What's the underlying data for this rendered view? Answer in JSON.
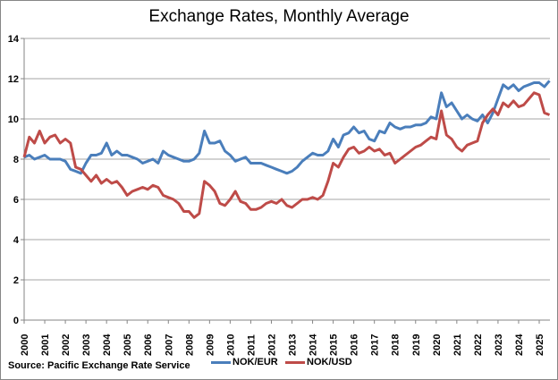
{
  "chart_data": {
    "type": "line",
    "title": "Exchange Rates, Monthly Average",
    "source": "Source: Pacific Exchange Rate Service",
    "xlabel": "",
    "ylabel": "",
    "ylim": [
      0,
      14
    ],
    "yticks": [
      0,
      2,
      4,
      6,
      8,
      10,
      12,
      14
    ],
    "xlim": [
      2000,
      2025.5
    ],
    "xticks": [
      "2000",
      "2001",
      "2002",
      "2003",
      "2004",
      "2005",
      "2006",
      "2007",
      "2008",
      "2009",
      "2010",
      "2011",
      "2012",
      "2013",
      "2014",
      "2015",
      "2016",
      "2017",
      "2018",
      "2019",
      "2020",
      "2021",
      "2022",
      "2023",
      "2024",
      "2025"
    ],
    "grid": true,
    "legend": "bottom",
    "x": [
      2000,
      2000.25,
      2000.5,
      2000.75,
      2001,
      2001.25,
      2001.5,
      2001.75,
      2002,
      2002.25,
      2002.5,
      2002.75,
      2003,
      2003.25,
      2003.5,
      2003.75,
      2004,
      2004.25,
      2004.5,
      2004.75,
      2005,
      2005.25,
      2005.5,
      2005.75,
      2006,
      2006.25,
      2006.5,
      2006.75,
      2007,
      2007.25,
      2007.5,
      2007.75,
      2008,
      2008.25,
      2008.5,
      2008.75,
      2009,
      2009.25,
      2009.5,
      2009.75,
      2010,
      2010.25,
      2010.5,
      2010.75,
      2011,
      2011.25,
      2011.5,
      2011.75,
      2012,
      2012.25,
      2012.5,
      2012.75,
      2013,
      2013.25,
      2013.5,
      2013.75,
      2014,
      2014.25,
      2014.5,
      2014.75,
      2015,
      2015.25,
      2015.5,
      2015.75,
      2016,
      2016.25,
      2016.5,
      2016.75,
      2017,
      2017.25,
      2017.5,
      2017.75,
      2018,
      2018.25,
      2018.5,
      2018.75,
      2019,
      2019.25,
      2019.5,
      2019.75,
      2020,
      2020.25,
      2020.5,
      2020.75,
      2021,
      2021.25,
      2021.5,
      2021.75,
      2022,
      2022.25,
      2022.5,
      2022.75,
      2023,
      2023.25,
      2023.5,
      2023.75,
      2024,
      2024.25,
      2024.5,
      2024.75,
      2025,
      2025.25,
      2025.5
    ],
    "series": [
      {
        "name": "NOK/EUR",
        "color": "#4a7ebb",
        "values": [
          8.1,
          8.2,
          8.0,
          8.1,
          8.2,
          8.0,
          8.0,
          8.0,
          7.9,
          7.5,
          7.4,
          7.3,
          7.8,
          8.2,
          8.2,
          8.3,
          8.8,
          8.2,
          8.4,
          8.2,
          8.2,
          8.1,
          8.0,
          7.8,
          7.9,
          8.0,
          7.8,
          8.4,
          8.2,
          8.1,
          8.0,
          7.9,
          7.9,
          8.0,
          8.3,
          9.4,
          8.8,
          8.8,
          8.9,
          8.4,
          8.2,
          7.9,
          8.0,
          8.1,
          7.8,
          7.8,
          7.8,
          7.7,
          7.6,
          7.5,
          7.4,
          7.3,
          7.4,
          7.6,
          7.9,
          8.1,
          8.3,
          8.2,
          8.2,
          8.4,
          9.0,
          8.6,
          9.2,
          9.3,
          9.6,
          9.3,
          9.4,
          9.0,
          8.9,
          9.4,
          9.3,
          9.8,
          9.6,
          9.5,
          9.6,
          9.6,
          9.7,
          9.7,
          9.8,
          10.1,
          10.0,
          11.3,
          10.6,
          10.8,
          10.4,
          10.0,
          10.2,
          10.0,
          9.9,
          10.2,
          9.8,
          10.3,
          11.0,
          11.7,
          11.5,
          11.7,
          11.4,
          11.6,
          11.7,
          11.8,
          11.8,
          11.6,
          11.9
        ]
      },
      {
        "name": "NOK/USD",
        "color": "#be4b48",
        "values": [
          8.1,
          9.1,
          8.8,
          9.4,
          8.8,
          9.1,
          9.2,
          8.8,
          9.0,
          8.8,
          7.6,
          7.5,
          7.2,
          6.9,
          7.2,
          6.8,
          7.0,
          6.8,
          6.9,
          6.6,
          6.2,
          6.4,
          6.5,
          6.6,
          6.5,
          6.7,
          6.6,
          6.2,
          6.1,
          6.0,
          5.8,
          5.4,
          5.4,
          5.1,
          5.3,
          6.9,
          6.7,
          6.4,
          5.8,
          5.7,
          6.0,
          6.4,
          5.9,
          5.8,
          5.5,
          5.5,
          5.6,
          5.8,
          5.9,
          5.8,
          6.0,
          5.7,
          5.6,
          5.8,
          6.0,
          6.0,
          6.1,
          6.0,
          6.2,
          6.9,
          7.8,
          7.6,
          8.1,
          8.5,
          8.6,
          8.3,
          8.4,
          8.6,
          8.4,
          8.5,
          8.2,
          8.3,
          7.8,
          8.0,
          8.2,
          8.4,
          8.6,
          8.7,
          8.9,
          9.1,
          9.0,
          10.4,
          9.2,
          9.0,
          8.6,
          8.4,
          8.7,
          8.8,
          8.9,
          9.8,
          10.2,
          10.5,
          10.2,
          10.8,
          10.6,
          10.9,
          10.6,
          10.7,
          11.0,
          11.3,
          11.2,
          10.3,
          10.2
        ]
      }
    ]
  }
}
